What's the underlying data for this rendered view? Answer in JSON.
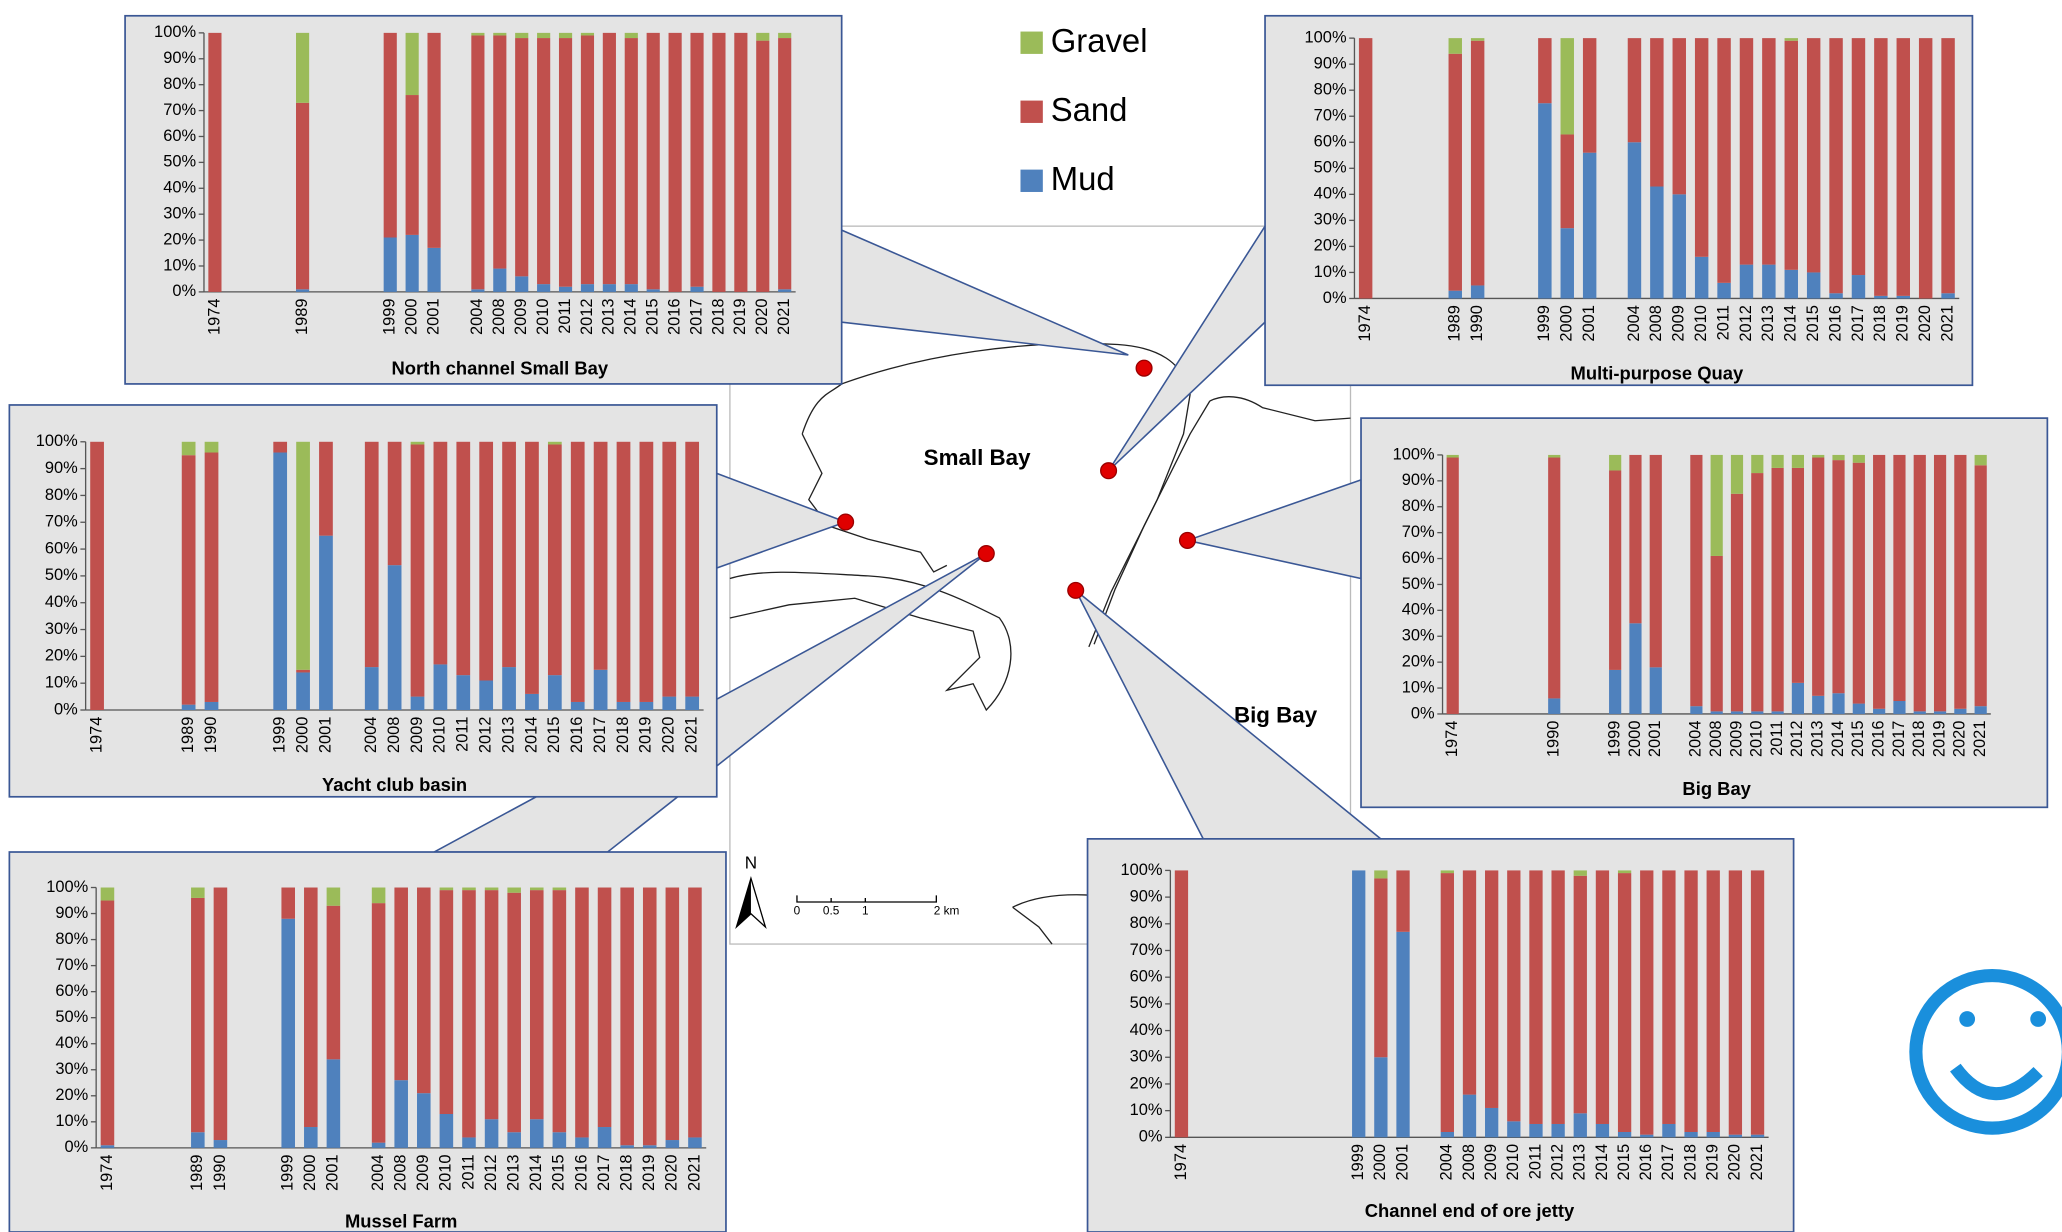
{
  "chart_data": [
    {
      "type": "bar",
      "stacked": true,
      "title": "North channel Small Bay",
      "categories": [
        "1974",
        null,
        null,
        null,
        "1989",
        null,
        null,
        null,
        "1999",
        "2000",
        "2001",
        null,
        "2004",
        "2008",
        "2009",
        "2010",
        "2011",
        "2012",
        "2013",
        "2014",
        "2015",
        "2016",
        "2017",
        "2018",
        "2019",
        "2020",
        "2021"
      ],
      "series": [
        {
          "name": "Mud",
          "color": "#4f81bd",
          "values": [
            0,
            null,
            null,
            null,
            1,
            null,
            null,
            null,
            21,
            22,
            17,
            null,
            1,
            9,
            6,
            3,
            2,
            3,
            3,
            3,
            1,
            0,
            2,
            0,
            0,
            0,
            1
          ]
        },
        {
          "name": "Sand",
          "color": "#c0504d",
          "values": [
            100,
            null,
            null,
            null,
            72,
            null,
            null,
            null,
            79,
            54,
            83,
            null,
            98,
            90,
            92,
            95,
            96,
            96,
            97,
            95,
            99,
            100,
            98,
            100,
            100,
            97,
            97
          ]
        },
        {
          "name": "Gravel",
          "color": "#9bbb59",
          "values": [
            0,
            null,
            null,
            null,
            27,
            null,
            null,
            null,
            0,
            24,
            0,
            null,
            1,
            1,
            2,
            2,
            2,
            1,
            0,
            2,
            0,
            0,
            0,
            0,
            0,
            3,
            2
          ]
        }
      ],
      "ylim": [
        0,
        100
      ],
      "yticks": [
        {
          "value": 0,
          "label": "0%"
        },
        {
          "value": 10,
          "label": "10%"
        },
        {
          "value": 20,
          "label": "20%"
        },
        {
          "value": 30,
          "label": "30%"
        },
        {
          "value": 40,
          "label": "40%"
        },
        {
          "value": 50,
          "label": "50%"
        },
        {
          "value": 60,
          "label": "60%"
        },
        {
          "value": 70,
          "label": "70%"
        },
        {
          "value": 80,
          "label": "80%"
        },
        {
          "value": 90,
          "label": "90%"
        },
        {
          "value": 100,
          "label": "100%"
        }
      ]
    },
    {
      "type": "bar",
      "stacked": true,
      "title": "Multi-purpose Quay",
      "categories": [
        "1974",
        null,
        null,
        null,
        "1989",
        "1990",
        null,
        null,
        "1999",
        "2000",
        "2001",
        null,
        "2004",
        "2008",
        "2009",
        "2010",
        "2011",
        "2012",
        "2013",
        "2014",
        "2015",
        "2016",
        "2017",
        "2018",
        "2019",
        "2020",
        "2021"
      ],
      "series": [
        {
          "name": "Mud",
          "color": "#4f81bd",
          "values": [
            0,
            null,
            null,
            null,
            3,
            5,
            null,
            null,
            75,
            27,
            56,
            null,
            60,
            43,
            40,
            16,
            6,
            13,
            13,
            11,
            10,
            2,
            9,
            1,
            1,
            0,
            2
          ]
        },
        {
          "name": "Sand",
          "color": "#c0504d",
          "values": [
            100,
            null,
            null,
            null,
            91,
            94,
            null,
            null,
            25,
            36,
            44,
            null,
            40,
            57,
            60,
            84,
            94,
            87,
            87,
            88,
            90,
            98,
            91,
            99,
            99,
            100,
            98
          ]
        },
        {
          "name": "Gravel",
          "color": "#9bbb59",
          "values": [
            0,
            null,
            null,
            null,
            6,
            1,
            null,
            null,
            0,
            37,
            0,
            null,
            0,
            0,
            0,
            0,
            0,
            0,
            0,
            1,
            0,
            0,
            0,
            0,
            0,
            0,
            0
          ]
        }
      ],
      "ylim": [
        0,
        100
      ],
      "yticks": [
        {
          "value": 0,
          "label": "0%"
        },
        {
          "value": 10,
          "label": "10%"
        },
        {
          "value": 20,
          "label": "20%"
        },
        {
          "value": 30,
          "label": "30%"
        },
        {
          "value": 40,
          "label": "40%"
        },
        {
          "value": 50,
          "label": "50%"
        },
        {
          "value": 60,
          "label": "60%"
        },
        {
          "value": 70,
          "label": "70%"
        },
        {
          "value": 80,
          "label": "80%"
        },
        {
          "value": 90,
          "label": "90%"
        },
        {
          "value": 100,
          "label": "100%"
        }
      ]
    },
    {
      "type": "bar",
      "stacked": true,
      "title": "Yacht club basin",
      "categories": [
        "1974",
        null,
        null,
        null,
        "1989",
        "1990",
        null,
        null,
        "1999",
        "2000",
        "2001",
        null,
        "2004",
        "2008",
        "2009",
        "2010",
        "2011",
        "2012",
        "2013",
        "2014",
        "2015",
        "2016",
        "2017",
        "2018",
        "2019",
        "2020",
        "2021"
      ],
      "series": [
        {
          "name": "Mud",
          "color": "#4f81bd",
          "values": [
            0,
            null,
            null,
            null,
            2,
            3,
            null,
            null,
            96,
            14,
            65,
            null,
            16,
            54,
            5,
            17,
            13,
            11,
            16,
            6,
            13,
            3,
            15,
            3,
            3,
            5,
            5
          ]
        },
        {
          "name": "Sand",
          "color": "#c0504d",
          "values": [
            100,
            null,
            null,
            null,
            93,
            93,
            null,
            null,
            4,
            1,
            35,
            null,
            84,
            46,
            94,
            83,
            87,
            89,
            84,
            94,
            86,
            97,
            85,
            97,
            97,
            95,
            95
          ]
        },
        {
          "name": "Gravel",
          "color": "#9bbb59",
          "values": [
            0,
            null,
            null,
            null,
            5,
            4,
            null,
            null,
            0,
            85,
            0,
            null,
            0,
            0,
            1,
            0,
            0,
            0,
            0,
            0,
            1,
            0,
            0,
            0,
            0,
            0,
            0
          ]
        }
      ],
      "ylim": [
        0,
        100
      ],
      "yticks": [
        {
          "value": 0,
          "label": "0%"
        },
        {
          "value": 10,
          "label": "10%"
        },
        {
          "value": 20,
          "label": "20%"
        },
        {
          "value": 30,
          "label": "30%"
        },
        {
          "value": 40,
          "label": "40%"
        },
        {
          "value": 50,
          "label": "50%"
        },
        {
          "value": 60,
          "label": "60%"
        },
        {
          "value": 70,
          "label": "70%"
        },
        {
          "value": 80,
          "label": "80%"
        },
        {
          "value": 90,
          "label": "90%"
        },
        {
          "value": 100,
          "label": "100%"
        }
      ]
    },
    {
      "type": "bar",
      "stacked": true,
      "title": "Big Bay",
      "categories": [
        "1974",
        null,
        null,
        null,
        null,
        "1990",
        null,
        null,
        "1999",
        "2000",
        "2001",
        null,
        "2004",
        "2008",
        "2009",
        "2010",
        "2011",
        "2012",
        "2013",
        "2014",
        "2015",
        "2016",
        "2017",
        "2018",
        "2019",
        "2020",
        "2021"
      ],
      "series": [
        {
          "name": "Mud",
          "color": "#4f81bd",
          "values": [
            0,
            null,
            null,
            null,
            null,
            6,
            null,
            null,
            17,
            35,
            18,
            null,
            3,
            1,
            1,
            1,
            1,
            12,
            7,
            8,
            4,
            2,
            5,
            1,
            1,
            2,
            3
          ]
        },
        {
          "name": "Sand",
          "color": "#c0504d",
          "values": [
            99,
            null,
            null,
            null,
            null,
            93,
            null,
            null,
            77,
            65,
            82,
            null,
            97,
            60,
            84,
            92,
            94,
            83,
            92,
            90,
            93,
            98,
            95,
            99,
            99,
            98,
            93
          ]
        },
        {
          "name": "Gravel",
          "color": "#9bbb59",
          "values": [
            1,
            null,
            null,
            null,
            null,
            1,
            null,
            null,
            6,
            0,
            0,
            null,
            0,
            39,
            15,
            7,
            5,
            5,
            1,
            2,
            3,
            0,
            0,
            0,
            0,
            0,
            4
          ]
        }
      ],
      "ylim": [
        0,
        100
      ],
      "yticks": [
        {
          "value": 0,
          "label": "0%"
        },
        {
          "value": 10,
          "label": "10%"
        },
        {
          "value": 20,
          "label": "20%"
        },
        {
          "value": 30,
          "label": "30%"
        },
        {
          "value": 40,
          "label": "40%"
        },
        {
          "value": 50,
          "label": "50%"
        },
        {
          "value": 60,
          "label": "60%"
        },
        {
          "value": 70,
          "label": "70%"
        },
        {
          "value": 80,
          "label": "80%"
        },
        {
          "value": 90,
          "label": "90%"
        },
        {
          "value": 100,
          "label": "100%"
        }
      ]
    },
    {
      "type": "bar",
      "stacked": true,
      "title": "Mussel Farm",
      "categories": [
        "1974",
        null,
        null,
        null,
        "1989",
        "1990",
        null,
        null,
        "1999",
        "2000",
        "2001",
        null,
        "2004",
        "2008",
        "2009",
        "2010",
        "2011",
        "2012",
        "2013",
        "2014",
        "2015",
        "2016",
        "2017",
        "2018",
        "2019",
        "2020",
        "2021"
      ],
      "series": [
        {
          "name": "Mud",
          "color": "#4f81bd",
          "values": [
            1,
            null,
            null,
            null,
            6,
            3,
            null,
            null,
            88,
            8,
            34,
            null,
            2,
            26,
            21,
            13,
            4,
            11,
            6,
            11,
            6,
            4,
            8,
            1,
            1,
            3,
            4
          ]
        },
        {
          "name": "Sand",
          "color": "#c0504d",
          "values": [
            94,
            null,
            null,
            null,
            90,
            97,
            null,
            null,
            12,
            92,
            59,
            null,
            92,
            74,
            79,
            86,
            95,
            88,
            92,
            88,
            93,
            96,
            92,
            99,
            99,
            97,
            96
          ]
        },
        {
          "name": "Gravel",
          "color": "#9bbb59",
          "values": [
            5,
            null,
            null,
            null,
            4,
            0,
            null,
            null,
            0,
            0,
            7,
            null,
            6,
            0,
            0,
            1,
            1,
            1,
            2,
            1,
            1,
            0,
            0,
            0,
            0,
            0,
            0
          ]
        }
      ],
      "ylim": [
        0,
        100
      ],
      "yticks": [
        {
          "value": 0,
          "label": "0%"
        },
        {
          "value": 10,
          "label": "10%"
        },
        {
          "value": 20,
          "label": "20%"
        },
        {
          "value": 30,
          "label": "30%"
        },
        {
          "value": 40,
          "label": "40%"
        },
        {
          "value": 50,
          "label": "50%"
        },
        {
          "value": 60,
          "label": "60%"
        },
        {
          "value": 70,
          "label": "70%"
        },
        {
          "value": 80,
          "label": "80%"
        },
        {
          "value": 90,
          "label": "90%"
        },
        {
          "value": 100,
          "label": "100%"
        }
      ]
    },
    {
      "type": "bar",
      "stacked": true,
      "title": "Channel end of ore jetty",
      "categories": [
        "1974",
        null,
        null,
        null,
        null,
        null,
        null,
        null,
        "1999",
        "2000",
        "2001",
        null,
        "2004",
        "2008",
        "2009",
        "2010",
        "2011",
        "2012",
        "2013",
        "2014",
        "2015",
        "2016",
        "2017",
        "2018",
        "2019",
        "2020",
        "2021"
      ],
      "series": [
        {
          "name": "Mud",
          "color": "#4f81bd",
          "values": [
            0,
            null,
            null,
            null,
            null,
            null,
            null,
            null,
            100,
            30,
            77,
            null,
            2,
            16,
            11,
            6,
            5,
            5,
            9,
            5,
            2,
            1,
            5,
            2,
            2,
            1,
            1
          ]
        },
        {
          "name": "Sand",
          "color": "#c0504d",
          "values": [
            100,
            null,
            null,
            null,
            null,
            null,
            null,
            null,
            0,
            67,
            23,
            null,
            97,
            84,
            89,
            94,
            95,
            95,
            89,
            95,
            97,
            99,
            95,
            98,
            98,
            99,
            99
          ]
        },
        {
          "name": "Gravel",
          "color": "#9bbb59",
          "values": [
            0,
            null,
            null,
            null,
            null,
            null,
            null,
            null,
            0,
            3,
            0,
            null,
            1,
            0,
            0,
            0,
            0,
            0,
            2,
            0,
            1,
            0,
            0,
            0,
            0,
            0,
            0
          ]
        }
      ],
      "ylim": [
        0,
        100
      ],
      "yticks": [
        {
          "value": 0,
          "label": "0%"
        },
        {
          "value": 10,
          "label": "10%"
        },
        {
          "value": 20,
          "label": "20%"
        },
        {
          "value": 30,
          "label": "30%"
        },
        {
          "value": 40,
          "label": "40%"
        },
        {
          "value": 50,
          "label": "50%"
        },
        {
          "value": 60,
          "label": "60%"
        },
        {
          "value": 70,
          "label": "70%"
        },
        {
          "value": 80,
          "label": "80%"
        },
        {
          "value": 90,
          "label": "90%"
        },
        {
          "value": 100,
          "label": "100%"
        }
      ]
    }
  ],
  "map": {
    "labels": [
      "Small Bay",
      "Big Bay"
    ],
    "north": "N",
    "scale": [
      "0",
      "0.5",
      "1",
      "2 km"
    ]
  }
}
